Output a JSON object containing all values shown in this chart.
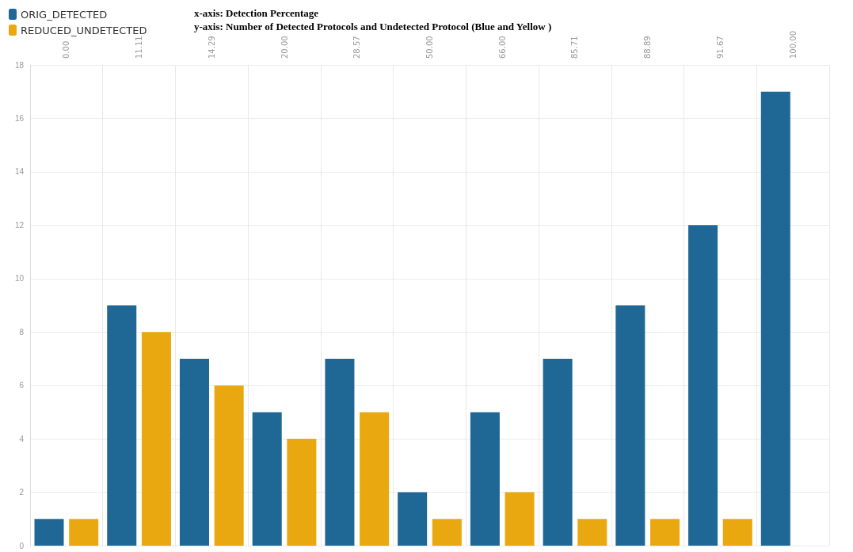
{
  "chart_data": {
    "type": "bar",
    "categories": [
      "0.00",
      "11.11",
      "14.29",
      "20.00",
      "28.57",
      "50.00",
      "66.00",
      "85.71",
      "88.89",
      "91.67",
      "100.00"
    ],
    "series": [
      {
        "name": "ORIG_DETECTED",
        "color": "#1f6896",
        "values": [
          1,
          9,
          7,
          5,
          7,
          2,
          5,
          7,
          9,
          12,
          17
        ]
      },
      {
        "name": "REDUCED_UNDETECTED",
        "color": "#e9a80f",
        "values": [
          1,
          8,
          6,
          4,
          5,
          1,
          2,
          1,
          1,
          1,
          null
        ]
      }
    ],
    "ylim": [
      0,
      18
    ],
    "yticks": [
      0,
      2,
      4,
      6,
      8,
      10,
      12,
      14,
      16,
      18
    ],
    "annotations": [
      "x-axis: Detection Percentage",
      "y-axis: Number of Detected Protocols and Undetected Protocol (Blue and Yellow )"
    ],
    "grid": true,
    "legend": "top left"
  }
}
